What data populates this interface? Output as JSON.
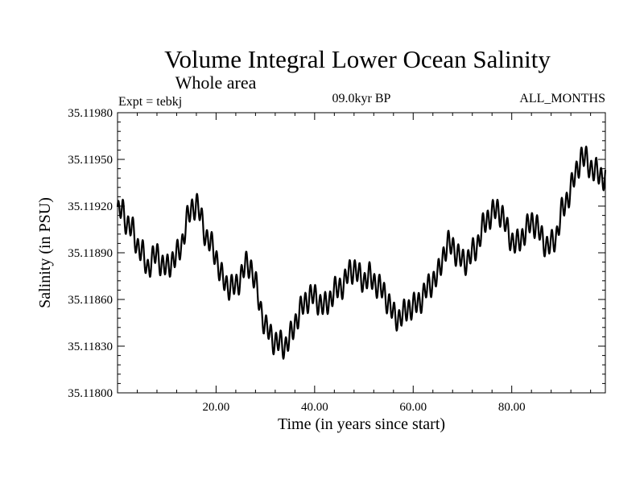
{
  "chart_data": {
    "type": "line",
    "title": "Volume Integral Lower Ocean Salinity",
    "subtitle": "Whole area",
    "left_label": "Expt = tebkj",
    "center_label": "09.0kyr BP",
    "right_label": "ALL_MONTHS",
    "xlabel": "Time (in years since start)",
    "ylabel": "Salinity (in PSU)",
    "xlim": [
      0,
      99
    ],
    "ylim": [
      35.118,
      35.1198
    ],
    "x_ticks": [
      20,
      40,
      60,
      80
    ],
    "x_tick_labels": [
      "20.00",
      "40.00",
      "60.00",
      "80.00"
    ],
    "y_ticks": [
      35.118,
      35.1183,
      35.1186,
      35.1189,
      35.1192,
      35.1195,
      35.1198
    ],
    "y_tick_labels": [
      "35.11800",
      "35.11830",
      "35.11860",
      "35.11890",
      "35.11920",
      "35.11950",
      "35.11980"
    ],
    "grid": false,
    "series": [
      {
        "name": "salinity",
        "color": "#000000",
        "anchors_x": [
          0,
          1,
          2,
          3,
          4,
          5,
          6,
          7,
          8,
          9,
          10,
          11,
          12,
          13,
          14,
          15,
          16,
          17,
          18,
          19,
          20,
          21,
          22,
          23,
          24,
          25,
          26,
          27,
          28,
          29,
          30,
          31,
          32,
          33,
          34,
          35,
          36,
          37,
          38,
          39,
          40,
          41,
          42,
          43,
          44,
          45,
          46,
          47,
          48,
          49,
          50,
          51,
          52,
          53,
          54,
          55,
          56,
          57,
          58,
          59,
          60,
          61,
          62,
          63,
          64,
          65,
          66,
          67,
          68,
          69,
          70,
          71,
          72,
          73,
          74,
          75,
          76,
          77,
          78,
          79,
          80,
          81,
          82,
          83,
          84,
          85,
          86,
          87,
          88,
          89,
          90,
          91,
          92,
          93,
          94,
          95,
          96,
          97,
          98,
          99
        ],
        "anchors_y": [
          35.11915,
          35.11918,
          35.11908,
          35.11905,
          35.11895,
          35.1189,
          35.1188,
          35.11885,
          35.1189,
          35.11882,
          35.1188,
          35.11885,
          35.11888,
          35.11895,
          35.1191,
          35.11918,
          35.11922,
          35.11912,
          35.119,
          35.11895,
          35.11888,
          35.11875,
          35.1187,
          35.11868,
          35.11868,
          35.11875,
          35.11882,
          35.11882,
          35.1187,
          35.11855,
          35.11842,
          35.11838,
          35.11832,
          35.11832,
          35.1183,
          35.11835,
          35.11845,
          35.11852,
          35.11858,
          35.11862,
          35.11862,
          35.11858,
          35.11855,
          35.1186,
          35.11865,
          35.11868,
          35.1187,
          35.11878,
          35.1188,
          35.11875,
          35.11872,
          35.11875,
          35.11872,
          35.11868,
          35.11865,
          35.11858,
          35.1185,
          35.11848,
          35.1185,
          35.11855,
          35.11855,
          35.11858,
          35.11862,
          35.11868,
          35.11872,
          35.11875,
          35.11888,
          35.11895,
          35.11895,
          35.11888,
          35.11885,
          35.11885,
          35.1189,
          35.11895,
          35.11905,
          35.11912,
          35.11915,
          35.11918,
          35.11915,
          35.11905,
          35.11898,
          35.11895,
          35.119,
          35.11905,
          35.1191,
          35.11908,
          35.119,
          35.11895,
          35.11895,
          35.119,
          35.11915,
          35.11922,
          35.11932,
          35.1194,
          35.11952,
          35.1195,
          35.11945,
          35.11942,
          35.1194,
          35.11938
        ],
        "oscillation_amplitude": 7e-05,
        "oscillation_period_years": 1.0
      }
    ]
  }
}
